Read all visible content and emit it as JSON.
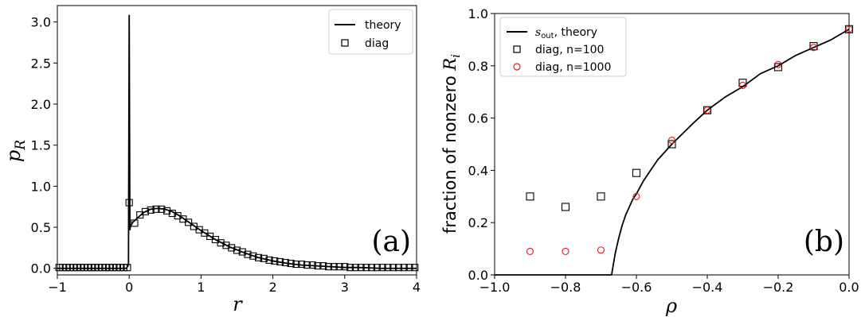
{
  "chart_data": [
    {
      "type": "line",
      "panel_tag": "(a)",
      "xlabel": "r",
      "ylabel_main": "p",
      "ylabel_sub": "R",
      "xlim": [
        -1,
        4
      ],
      "ylim": [
        -0.08,
        3.2
      ],
      "xticks": [
        "−1",
        "0",
        "1",
        "2",
        "3",
        "4"
      ],
      "yticks": [
        "0.0",
        "0.5",
        "1.0",
        "1.5",
        "2.0",
        "2.5",
        "3.0"
      ],
      "legend_placement": "top-right",
      "series": [
        {
          "name": "theory",
          "style": "line",
          "color": "#000000",
          "x": [
            -1.0,
            -0.04,
            -0.01,
            0.0,
            0.01,
            0.02,
            0.05,
            0.1,
            0.2,
            0.3,
            0.4,
            0.5,
            0.6,
            0.7,
            0.8,
            0.9,
            1.0,
            1.2,
            1.4,
            1.6,
            1.8,
            2.0,
            2.2,
            2.4,
            2.6,
            2.8,
            3.0,
            3.2,
            3.5,
            4.0
          ],
          "y": [
            0.0,
            0.0,
            0.04,
            3.08,
            0.47,
            0.52,
            0.56,
            0.6,
            0.68,
            0.72,
            0.73,
            0.72,
            0.69,
            0.64,
            0.58,
            0.52,
            0.46,
            0.35,
            0.26,
            0.19,
            0.13,
            0.09,
            0.06,
            0.04,
            0.03,
            0.02,
            0.01,
            0.01,
            0.0,
            0.0
          ]
        },
        {
          "name": "diag",
          "style": "square",
          "color": "#000000",
          "x": [
            -0.975,
            -0.925,
            -0.875,
            -0.825,
            -0.775,
            -0.725,
            -0.675,
            -0.625,
            -0.575,
            -0.525,
            -0.475,
            -0.425,
            -0.375,
            -0.325,
            -0.275,
            -0.225,
            -0.175,
            -0.125,
            -0.075,
            -0.025,
            0.0,
            0.075,
            0.15,
            0.225,
            0.3,
            0.375,
            0.45,
            0.525,
            0.6,
            0.675,
            0.75,
            0.825,
            0.9,
            0.975,
            1.05,
            1.125,
            1.2,
            1.275,
            1.35,
            1.425,
            1.5,
            1.575,
            1.65,
            1.725,
            1.8,
            1.875,
            1.95,
            2.025,
            2.1,
            2.175,
            2.25,
            2.325,
            2.4,
            2.475,
            2.55,
            2.625,
            2.7,
            2.775,
            2.85,
            2.925,
            3.0,
            3.075,
            3.15,
            3.225,
            3.3,
            3.375,
            3.45,
            3.525,
            3.6,
            3.675,
            3.75,
            3.825,
            3.9,
            3.975
          ],
          "y": [
            0.01,
            0.01,
            0.01,
            0.01,
            0.01,
            0.01,
            0.01,
            0.01,
            0.01,
            0.01,
            0.01,
            0.01,
            0.01,
            0.01,
            0.01,
            0.01,
            0.01,
            0.01,
            0.01,
            0.01,
            0.8,
            0.55,
            0.65,
            0.69,
            0.71,
            0.72,
            0.72,
            0.7,
            0.67,
            0.64,
            0.6,
            0.56,
            0.51,
            0.47,
            0.43,
            0.39,
            0.35,
            0.31,
            0.28,
            0.25,
            0.22,
            0.2,
            0.17,
            0.15,
            0.13,
            0.12,
            0.1,
            0.09,
            0.08,
            0.07,
            0.06,
            0.05,
            0.05,
            0.04,
            0.04,
            0.03,
            0.03,
            0.02,
            0.02,
            0.02,
            0.02,
            0.01,
            0.01,
            0.01,
            0.01,
            0.01,
            0.01,
            0.01,
            0.01,
            0.01,
            0.01,
            0.01,
            0.01,
            0.01
          ]
        }
      ]
    },
    {
      "type": "scatter",
      "panel_tag": "(b)",
      "xlabel": "ρ",
      "ylabel_main": "fraction of nonzero ",
      "ylabel_var": "R",
      "ylabel_sub": "i",
      "xlim": [
        -1.0,
        0.0
      ],
      "ylim": [
        0.0,
        1.0
      ],
      "xticks": [
        "−1.0",
        "−0.8",
        "−0.6",
        "−0.4",
        "−0.2",
        "0.0"
      ],
      "yticks": [
        "0.0",
        "0.2",
        "0.4",
        "0.6",
        "0.8",
        "1.0"
      ],
      "legend_placement": "top-left",
      "series": [
        {
          "name_var": "s",
          "name_sub": "out",
          "name_rest": ", theory",
          "style": "line",
          "color": "#000000",
          "x": [
            -1.0,
            -0.67,
            -0.66,
            -0.65,
            -0.64,
            -0.63,
            -0.62,
            -0.61,
            -0.6,
            -0.58,
            -0.56,
            -0.54,
            -0.52,
            -0.5,
            -0.47,
            -0.44,
            -0.4,
            -0.35,
            -0.3,
            -0.25,
            -0.2,
            -0.15,
            -0.1,
            -0.05,
            0.0
          ],
          "y": [
            0.0,
            0.0,
            0.08,
            0.14,
            0.19,
            0.23,
            0.26,
            0.29,
            0.31,
            0.36,
            0.4,
            0.44,
            0.47,
            0.5,
            0.54,
            0.58,
            0.63,
            0.68,
            0.72,
            0.77,
            0.8,
            0.84,
            0.87,
            0.9,
            0.94
          ]
        },
        {
          "name": "diag, n=100",
          "style": "square",
          "color": "#000000",
          "x": [
            -0.9,
            -0.8,
            -0.7,
            -0.6,
            -0.5,
            -0.4,
            -0.3,
            -0.2,
            -0.1,
            0.0
          ],
          "y": [
            0.3,
            0.26,
            0.3,
            0.39,
            0.5,
            0.63,
            0.735,
            0.795,
            0.875,
            0.94
          ]
        },
        {
          "name": "diag, n=1000",
          "style": "circle",
          "color": "#e8161b",
          "x": [
            -0.9,
            -0.8,
            -0.7,
            -0.6,
            -0.5,
            -0.4,
            -0.3,
            -0.2,
            -0.1,
            0.0
          ],
          "y": [
            0.09,
            0.09,
            0.095,
            0.3,
            0.515,
            0.63,
            0.725,
            0.805,
            0.87,
            0.94
          ]
        }
      ]
    }
  ]
}
